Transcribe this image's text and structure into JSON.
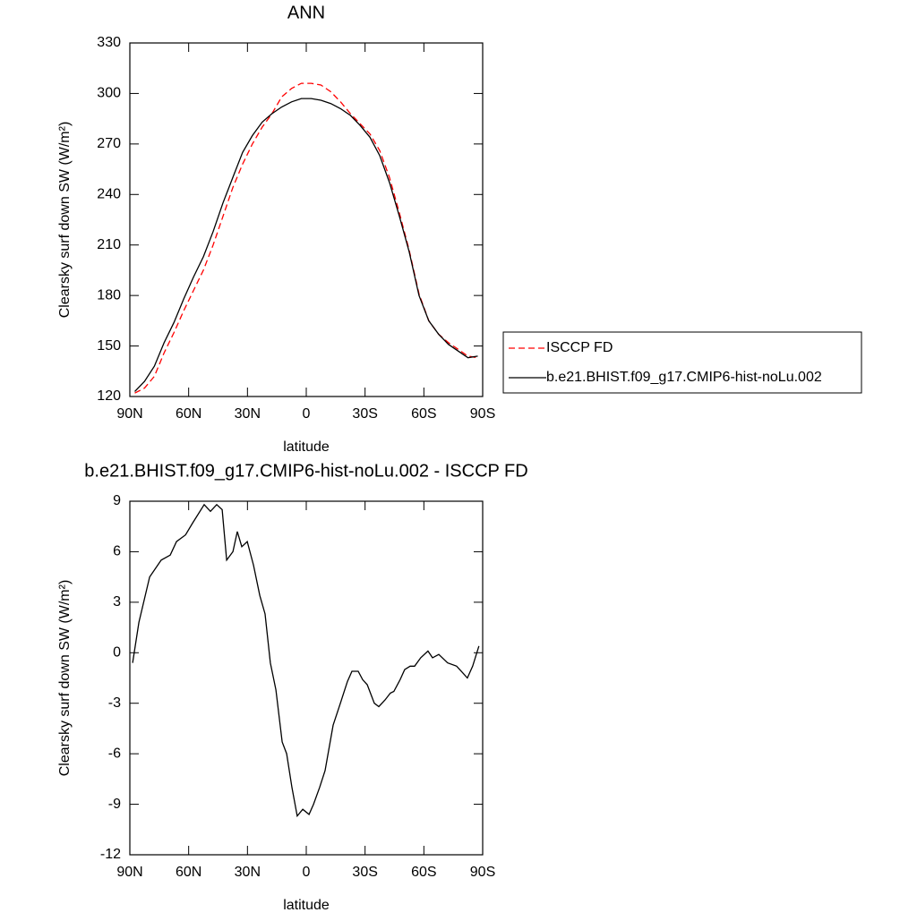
{
  "chart_data": [
    {
      "type": "line",
      "title": "ANN",
      "x_label": "latitude",
      "y_label": "Clearsky surf down SW (W/m²)",
      "xlim": [
        90,
        -90
      ],
      "xticks": [
        {
          "value": 90,
          "label": "90N"
        },
        {
          "value": 60,
          "label": "60N"
        },
        {
          "value": 30,
          "label": "30N"
        },
        0,
        {
          "value": -30,
          "label": "30S"
        },
        {
          "value": -60,
          "label": "60S"
        },
        {
          "value": -90,
          "label": "90S"
        }
      ],
      "ylim": [
        120,
        330
      ],
      "yticks": [
        120,
        150,
        180,
        210,
        240,
        270,
        300,
        330
      ],
      "legend": "right",
      "x": [
        87.5,
        82.5,
        77.5,
        72.5,
        67.5,
        62.5,
        57.5,
        52.5,
        47.5,
        42.5,
        37.5,
        32.5,
        27.5,
        22.5,
        17.5,
        12.5,
        7.5,
        2.5,
        -2.5,
        -7.5,
        -12.5,
        -17.5,
        -22.5,
        -27.5,
        -32.5,
        -37.5,
        -42.5,
        -47.5,
        -52.5,
        -57.5,
        -62.5,
        -67.5,
        -72.5,
        -77.5,
        -82.5,
        -87.5
      ],
      "series": [
        {
          "name": "ISCCP FD",
          "color": "#ff0000",
          "dash": "dashed",
          "values": [
            122,
            125,
            132,
            146,
            158,
            171,
            183,
            195,
            210,
            227,
            244,
            258,
            270,
            280,
            288,
            298,
            303,
            306,
            306,
            305,
            301,
            295,
            288,
            282,
            276,
            266,
            250,
            229,
            207,
            181,
            165,
            157,
            152,
            148,
            144,
            143
          ]
        },
        {
          "name": "b.e21.BHIST.f09_g17.CMIP6-hist-noLu.002",
          "color": "#000000",
          "dash": "solid",
          "values": [
            123,
            129,
            138,
            152,
            164,
            178,
            191,
            203,
            218,
            235,
            250,
            265,
            275,
            283,
            288,
            292,
            295,
            297,
            297,
            296,
            294,
            291,
            287,
            281,
            274,
            263,
            247,
            227,
            206,
            180,
            165,
            157,
            151,
            147,
            143,
            144
          ]
        }
      ]
    },
    {
      "type": "line",
      "title": "b.e21.BHIST.f09_g17.CMIP6-hist-noLu.002 - ISCCP FD",
      "x_label": "latitude",
      "y_label": "Clearsky surf down SW (W/m²)",
      "xlim": [
        90,
        -90
      ],
      "xticks": [
        {
          "value": 90,
          "label": "90N"
        },
        {
          "value": 60,
          "label": "60N"
        },
        {
          "value": 30,
          "label": "30N"
        },
        0,
        {
          "value": -30,
          "label": "30S"
        },
        {
          "value": -60,
          "label": "60S"
        },
        {
          "value": -90,
          "label": "90S"
        }
      ],
      "ylim": [
        -12,
        9
      ],
      "yticks": [
        -12,
        -9,
        -6,
        -3,
        0,
        3,
        6,
        9
      ],
      "color": "#000000",
      "x": [
        88.6,
        85.4,
        79.9,
        74.0,
        69.4,
        66.2,
        61.6,
        58.0,
        52.1,
        48.9,
        45.7,
        42.9,
        40.6,
        37.4,
        35.2,
        32.9,
        30.1,
        26.9,
        23.7,
        21.0,
        18.3,
        15.5,
        12.3,
        10.0,
        7.3,
        4.6,
        1.8,
        -1.4,
        -3.7,
        -6.8,
        -9.6,
        -13.7,
        -17.4,
        -21.0,
        -23.3,
        -26.5,
        -28.8,
        -31.1,
        -34.7,
        -37.0,
        -40.2,
        -42.9,
        -44.7,
        -47.9,
        -50.2,
        -53.0,
        -55.3,
        -58.4,
        -62.1,
        -64.4,
        -67.6,
        -72.1,
        -76.7,
        -79.9,
        -82.2,
        -84.9,
        -88.1
      ],
      "values": [
        -0.6,
        1.8,
        4.5,
        5.5,
        5.8,
        6.6,
        7.0,
        7.7,
        8.8,
        8.4,
        8.8,
        8.5,
        5.5,
        6.0,
        7.2,
        6.3,
        6.6,
        5.2,
        3.4,
        2.3,
        -0.6,
        -2.2,
        -5.3,
        -6.0,
        -8.0,
        -9.7,
        -9.3,
        -9.6,
        -9.0,
        -8.0,
        -7.0,
        -4.3,
        -3.0,
        -1.7,
        -1.1,
        -1.1,
        -1.6,
        -1.9,
        -3.0,
        -3.2,
        -2.8,
        -2.4,
        -2.3,
        -1.6,
        -1.0,
        -0.8,
        -0.8,
        -0.3,
        0.1,
        -0.3,
        -0.1,
        -0.6,
        -0.8,
        -1.2,
        -1.5,
        -0.8,
        0.4
      ]
    }
  ]
}
